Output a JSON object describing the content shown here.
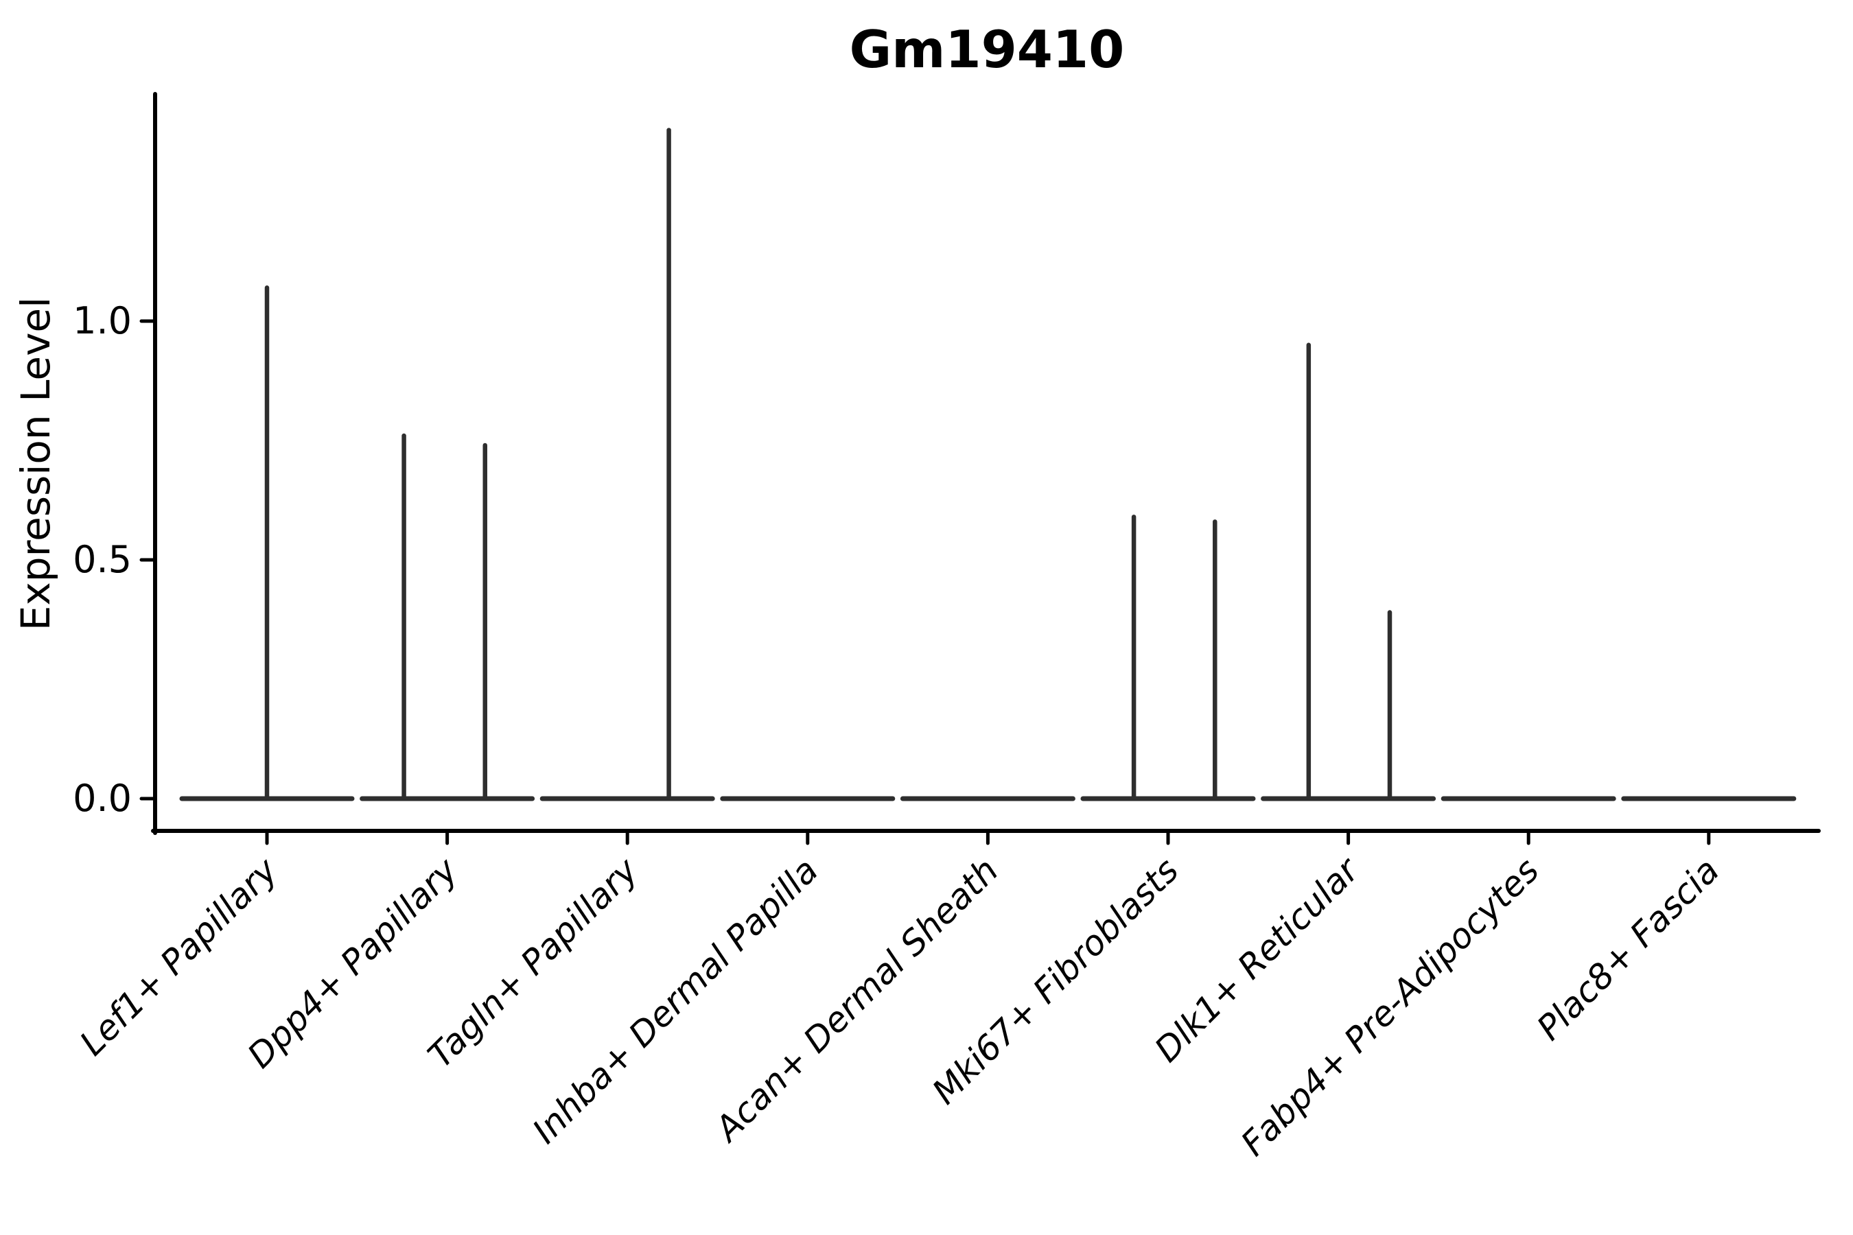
{
  "figure": {
    "title": "Gm19410",
    "background": "#ffffff"
  },
  "chart_data": {
    "type": "violin",
    "title": "Gm19410",
    "xlabel": "",
    "ylabel": "Expression Level",
    "yticks": [
      "0.0",
      "0.5",
      "1.0"
    ],
    "ytick_values": [
      0.0,
      0.5,
      1.0
    ],
    "ylim": [
      -0.07,
      1.47
    ],
    "legend": "none",
    "grid": false,
    "categories": [
      "Lef1+ Papillary",
      "Dpp4+ Papillary",
      "Tagln+ Papillary",
      "Inhba+ Dermal Papilla",
      "Acan+ Dermal Sheath",
      "Mki67+ Fibroblasts",
      "Dlk1+ Reticular",
      "Fabp4+ Pre-Adipocytes",
      "Plac8+ Fascia"
    ],
    "violins": [
      {
        "category": "Lef1+ Papillary",
        "baseline_value": 0.0,
        "spikes": [
          {
            "x_offset": 0.0,
            "peak": 1.07
          }
        ]
      },
      {
        "category": "Dpp4+ Papillary",
        "baseline_value": 0.0,
        "spikes": [
          {
            "x_offset": -0.24,
            "peak": 0.76
          },
          {
            "x_offset": 0.21,
            "peak": 0.74
          }
        ]
      },
      {
        "category": "Tagln+ Papillary",
        "baseline_value": 0.0,
        "spikes": [
          {
            "x_offset": 0.23,
            "peak": 1.4
          }
        ]
      },
      {
        "category": "Inhba+ Dermal Papilla",
        "baseline_value": 0.0,
        "spikes": []
      },
      {
        "category": "Acan+ Dermal Sheath",
        "baseline_value": 0.0,
        "spikes": []
      },
      {
        "category": "Mki67+ Fibroblasts",
        "baseline_value": 0.0,
        "spikes": [
          {
            "x_offset": -0.19,
            "peak": 0.59
          },
          {
            "x_offset": 0.26,
            "peak": 0.58
          }
        ]
      },
      {
        "category": "Dlk1+ Reticular",
        "baseline_value": 0.0,
        "spikes": [
          {
            "x_offset": -0.22,
            "peak": 0.95
          },
          {
            "x_offset": 0.23,
            "peak": 0.39
          }
        ]
      },
      {
        "category": "Fabp4+ Pre-Adipocytes",
        "baseline_value": 0.0,
        "spikes": []
      },
      {
        "category": "Plac8+ Fascia",
        "baseline_value": 0.0,
        "spikes": []
      }
    ],
    "colors": {
      "violin": "#2e2e2e",
      "axis": "#000000",
      "text": "#000000",
      "background": "#ffffff"
    }
  }
}
